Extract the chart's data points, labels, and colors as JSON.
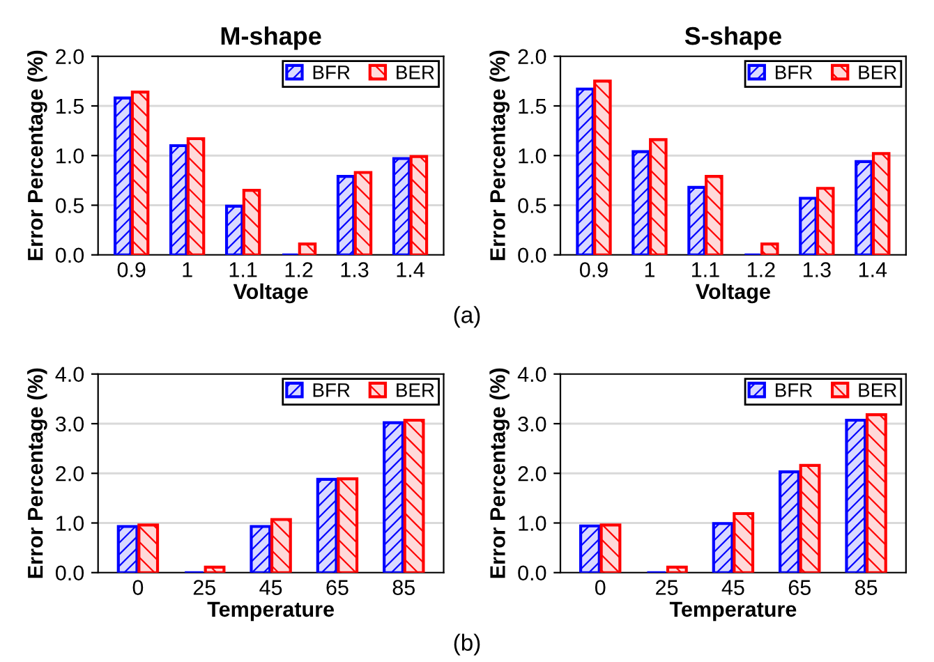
{
  "chart_data": [
    {
      "type": "bar",
      "title": "M-shape",
      "xlabel": "Voltage",
      "ylabel": "Error Percentage (%)",
      "categories": [
        "0.9",
        "1",
        "1.1",
        "1.2",
        "1.3",
        "1.4"
      ],
      "ylim": [
        0,
        2.0
      ],
      "yticks": [
        {
          "value": 0,
          "label": "0.0"
        },
        {
          "value": 0.5,
          "label": "0.5"
        },
        {
          "value": 1.0,
          "label": "1.0"
        },
        {
          "value": 1.5,
          "label": "1.5"
        },
        {
          "value": 2.0,
          "label": "2.0"
        }
      ],
      "grid": "y",
      "legend": "top right",
      "annotations": [
        "(a)"
      ],
      "series": [
        {
          "name": "BFR",
          "color": "#0000ff",
          "values": [
            1.58,
            1.1,
            0.49,
            0,
            0.79,
            0.97
          ]
        },
        {
          "name": "BER",
          "color": "#ff0000",
          "values": [
            1.64,
            1.17,
            0.65,
            0.11,
            0.83,
            0.99
          ]
        }
      ]
    },
    {
      "type": "bar",
      "title": "S-shape",
      "xlabel": "Voltage",
      "ylabel": "Error Percentage (%)",
      "categories": [
        "0.9",
        "1",
        "1.1",
        "1.2",
        "1.3",
        "1.4"
      ],
      "ylim": [
        0,
        2.0
      ],
      "yticks": [
        {
          "value": 0,
          "label": "0.0"
        },
        {
          "value": 0.5,
          "label": "0.5"
        },
        {
          "value": 1.0,
          "label": "1.0"
        },
        {
          "value": 1.5,
          "label": "1.5"
        },
        {
          "value": 2.0,
          "label": "2.0"
        }
      ],
      "grid": "y",
      "legend": "top right",
      "series": [
        {
          "name": "BFR",
          "color": "#0000ff",
          "values": [
            1.67,
            1.04,
            0.68,
            0,
            0.57,
            0.94
          ]
        },
        {
          "name": "BER",
          "color": "#ff0000",
          "values": [
            1.75,
            1.16,
            0.79,
            0.11,
            0.67,
            1.02
          ]
        }
      ]
    },
    {
      "type": "bar",
      "xlabel": "Temperature",
      "ylabel": "Error Percentage (%)",
      "categories": [
        "0",
        "25",
        "45",
        "65",
        "85"
      ],
      "ylim": [
        0,
        4.0
      ],
      "yticks": [
        {
          "value": 0,
          "label": "0.0"
        },
        {
          "value": 1.0,
          "label": "1.0"
        },
        {
          "value": 2.0,
          "label": "2.0"
        },
        {
          "value": 3.0,
          "label": "3.0"
        },
        {
          "value": 4.0,
          "label": "4.0"
        }
      ],
      "grid": "y",
      "legend": "top right",
      "annotations": [
        "(b)"
      ],
      "series": [
        {
          "name": "BFR",
          "color": "#0000ff",
          "values": [
            0.93,
            0,
            0.93,
            1.88,
            3.02
          ]
        },
        {
          "name": "BER",
          "color": "#ff0000",
          "values": [
            0.96,
            0.11,
            1.07,
            1.89,
            3.07
          ]
        }
      ]
    },
    {
      "type": "bar",
      "xlabel": "Temperature",
      "ylabel": "Error Percentage (%)",
      "categories": [
        "0",
        "25",
        "45",
        "65",
        "85"
      ],
      "ylim": [
        0,
        4.0
      ],
      "yticks": [
        {
          "value": 0,
          "label": "0.0"
        },
        {
          "value": 1.0,
          "label": "1.0"
        },
        {
          "value": 2.0,
          "label": "2.0"
        },
        {
          "value": 3.0,
          "label": "3.0"
        },
        {
          "value": 4.0,
          "label": "4.0"
        }
      ],
      "grid": "y",
      "legend": "top right",
      "series": [
        {
          "name": "BFR",
          "color": "#0000ff",
          "values": [
            0.94,
            0,
            0.99,
            2.03,
            3.07
          ]
        },
        {
          "name": "BER",
          "color": "#ff0000",
          "values": [
            0.96,
            0.11,
            1.19,
            2.16,
            3.18
          ]
        }
      ]
    }
  ]
}
